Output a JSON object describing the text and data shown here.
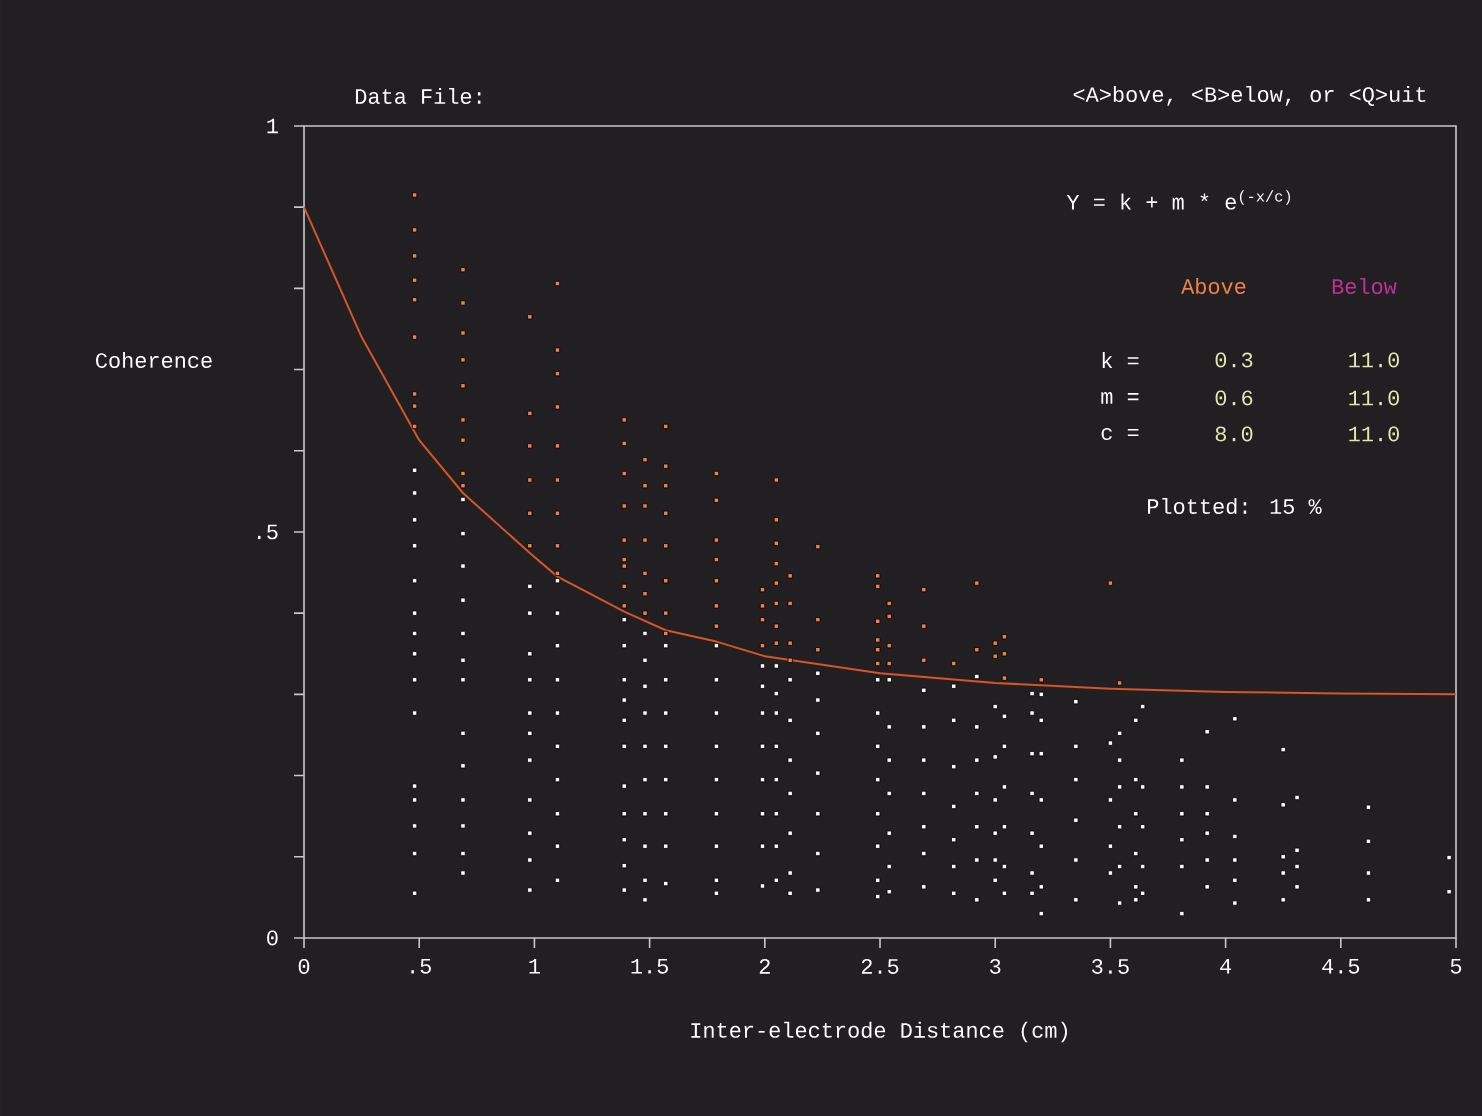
{
  "chart_data": {
    "type": "scatter",
    "xlabel": "Inter-electrode Distance (cm)",
    "ylabel": "Coherence",
    "xlim": [
      0,
      5
    ],
    "ylim": [
      0,
      1
    ],
    "xticks": [
      0,
      {
        "value": 0.5,
        "label": ".5"
      },
      1,
      1.5,
      2,
      2.5,
      3,
      3.5,
      4,
      4.5,
      5
    ],
    "yticks": [
      0,
      {
        "value": 0.1,
        "label": null
      },
      {
        "value": 0.2,
        "label": null
      },
      {
        "value": 0.3,
        "label": null
      },
      {
        "value": 0.4,
        "label": null
      },
      {
        "value": 0.5,
        "label": ".5"
      },
      {
        "value": 0.6,
        "label": null
      },
      {
        "value": 0.7,
        "label": null
      },
      {
        "value": 0.8,
        "label": null
      },
      {
        "value": 0.9,
        "label": null
      },
      1
    ],
    "annotations": [
      "Data File:",
      "<A>bove, <B>elow, or <Q>uit",
      "Y = k + m * e$^{(-x/c)}$",
      "Above",
      "Below",
      "k =",
      "0.3",
      "11.0",
      "m =",
      "0.6",
      "11.0",
      "c =",
      "8.0",
      "11.0",
      "Plotted: 15 %"
    ],
    "series": [
      {
        "marker": "square",
        "color": "#f0804a",
        "x": [
          0.48,
          0.48,
          0.48,
          0.48,
          0.48,
          0.48,
          0.48,
          0.48,
          0.48,
          0.69,
          0.69,
          0.69,
          0.69,
          0.69,
          0.69,
          0.69,
          0.69,
          0.69,
          0.98,
          0.98,
          0.98,
          0.98,
          0.98,
          0.98,
          1.1,
          1.1,
          1.1,
          1.1,
          1.1,
          1.1,
          1.1,
          1.1,
          1.1,
          1.39,
          1.39,
          1.39,
          1.39,
          1.39,
          1.39,
          1.39,
          1.39,
          1.39,
          1.48,
          1.48,
          1.48,
          1.48,
          1.48,
          1.48,
          1.48,
          1.57,
          1.57,
          1.57,
          1.57,
          1.57,
          1.57,
          1.57,
          1.57,
          1.79,
          1.79,
          1.79,
          1.79,
          1.79,
          1.79,
          1.79,
          1.99,
          1.99,
          1.99,
          1.99,
          2.05,
          2.05,
          2.05,
          2.05,
          2.05,
          2.05,
          2.05,
          2.05,
          2.11,
          2.11,
          2.11,
          2.11,
          2.23,
          2.23,
          2.23,
          2.49,
          2.49,
          2.49,
          2.49,
          2.49,
          2.49,
          2.54,
          2.54,
          2.54,
          2.54,
          2.69,
          2.69,
          2.69,
          2.82,
          2.92,
          2.92,
          3.0,
          3.0,
          3.04,
          3.04,
          3.04,
          3.2,
          3.5,
          3.54
        ],
        "values": [
          0.915,
          0.872,
          0.84,
          0.81,
          0.786,
          0.74,
          0.67,
          0.655,
          0.63,
          0.823,
          0.782,
          0.745,
          0.712,
          0.68,
          0.638,
          0.613,
          0.572,
          0.557,
          0.765,
          0.646,
          0.606,
          0.564,
          0.523,
          0.483,
          0.806,
          0.724,
          0.695,
          0.654,
          0.606,
          0.564,
          0.523,
          0.483,
          0.449,
          0.638,
          0.609,
          0.572,
          0.532,
          0.49,
          0.466,
          0.433,
          0.458,
          0.409,
          0.589,
          0.557,
          0.532,
          0.49,
          0.449,
          0.424,
          0.4,
          0.63,
          0.581,
          0.557,
          0.523,
          0.483,
          0.44,
          0.4,
          0.375,
          0.572,
          0.539,
          0.49,
          0.466,
          0.44,
          0.409,
          0.384,
          0.429,
          0.409,
          0.392,
          0.36,
          0.564,
          0.515,
          0.486,
          0.461,
          0.437,
          0.412,
          0.384,
          0.363,
          0.446,
          0.412,
          0.363,
          0.342,
          0.482,
          0.392,
          0.355,
          0.446,
          0.433,
          0.39,
          0.367,
          0.355,
          0.338,
          0.412,
          0.396,
          0.36,
          0.338,
          0.429,
          0.384,
          0.342,
          0.338,
          0.437,
          0.355,
          0.363,
          0.347,
          0.371,
          0.35,
          0.32,
          0.318,
          0.437,
          0.314
        ]
      },
      {
        "marker": "square",
        "color": "#ffffff",
        "x": [
          0.48,
          0.48,
          0.48,
          0.48,
          0.48,
          0.48,
          0.48,
          0.48,
          0.48,
          0.48,
          0.48,
          0.48,
          0.48,
          0.48,
          0.48,
          0.69,
          0.69,
          0.69,
          0.69,
          0.69,
          0.69,
          0.69,
          0.69,
          0.69,
          0.69,
          0.69,
          0.69,
          0.69,
          0.98,
          0.98,
          0.98,
          0.98,
          0.98,
          0.98,
          0.98,
          0.98,
          0.98,
          0.98,
          0.98,
          1.1,
          1.1,
          1.1,
          1.1,
          1.1,
          1.1,
          1.1,
          1.1,
          1.1,
          1.1,
          1.39,
          1.39,
          1.39,
          1.39,
          1.39,
          1.39,
          1.39,
          1.39,
          1.39,
          1.39,
          1.39,
          1.48,
          1.48,
          1.48,
          1.48,
          1.48,
          1.48,
          1.48,
          1.48,
          1.48,
          1.48,
          1.57,
          1.57,
          1.57,
          1.57,
          1.57,
          1.57,
          1.57,
          1.57,
          1.79,
          1.79,
          1.79,
          1.79,
          1.79,
          1.79,
          1.79,
          1.79,
          1.79,
          1.99,
          1.99,
          1.99,
          1.99,
          1.99,
          1.99,
          1.99,
          1.99,
          2.05,
          2.05,
          2.05,
          2.05,
          2.05,
          2.05,
          2.05,
          2.05,
          2.11,
          2.11,
          2.11,
          2.11,
          2.11,
          2.11,
          2.11,
          2.23,
          2.23,
          2.23,
          2.23,
          2.23,
          2.23,
          2.23,
          2.49,
          2.49,
          2.49,
          2.49,
          2.49,
          2.49,
          2.49,
          2.49,
          2.54,
          2.54,
          2.54,
          2.54,
          2.54,
          2.54,
          2.54,
          2.69,
          2.69,
          2.69,
          2.69,
          2.69,
          2.69,
          2.69,
          2.82,
          2.82,
          2.82,
          2.82,
          2.82,
          2.82,
          2.82,
          2.92,
          2.92,
          2.92,
          2.92,
          2.92,
          2.92,
          2.92,
          3.0,
          3.0,
          3.0,
          3.0,
          3.0,
          3.0,
          3.04,
          3.04,
          3.04,
          3.04,
          3.04,
          3.04,
          3.16,
          3.16,
          3.16,
          3.16,
          3.16,
          3.16,
          3.16,
          3.2,
          3.2,
          3.2,
          3.2,
          3.2,
          3.2,
          3.2,
          3.35,
          3.35,
          3.35,
          3.35,
          3.35,
          3.35,
          3.5,
          3.5,
          3.5,
          3.5,
          3.54,
          3.54,
          3.54,
          3.54,
          3.54,
          3.54,
          3.61,
          3.61,
          3.61,
          3.61,
          3.61,
          3.61,
          3.64,
          3.64,
          3.64,
          3.64,
          3.64,
          3.81,
          3.81,
          3.81,
          3.81,
          3.81,
          3.81,
          3.92,
          3.92,
          3.92,
          3.92,
          3.92,
          3.92,
          4.04,
          4.04,
          4.04,
          4.04,
          4.04,
          4.04,
          4.25,
          4.25,
          4.25,
          4.25,
          4.25,
          4.31,
          4.31,
          4.31,
          4.31,
          4.62,
          4.62,
          4.62,
          4.62,
          4.97,
          4.97
        ],
        "values": [
          0.576,
          0.548,
          0.515,
          0.483,
          0.44,
          0.4,
          0.375,
          0.35,
          0.318,
          0.277,
          0.187,
          0.17,
          0.138,
          0.104,
          0.055,
          0.54,
          0.498,
          0.458,
          0.416,
          0.375,
          0.342,
          0.318,
          0.252,
          0.212,
          0.17,
          0.138,
          0.104,
          0.08,
          0.433,
          0.4,
          0.35,
          0.318,
          0.277,
          0.252,
          0.219,
          0.17,
          0.129,
          0.096,
          0.059,
          0.44,
          0.4,
          0.36,
          0.318,
          0.277,
          0.236,
          0.195,
          0.153,
          0.113,
          0.071,
          0.392,
          0.36,
          0.318,
          0.293,
          0.268,
          0.236,
          0.187,
          0.153,
          0.121,
          0.089,
          0.059,
          0.375,
          0.342,
          0.31,
          0.277,
          0.236,
          0.195,
          0.153,
          0.113,
          0.071,
          0.047,
          0.36,
          0.318,
          0.277,
          0.236,
          0.195,
          0.153,
          0.113,
          0.067,
          0.36,
          0.318,
          0.277,
          0.236,
          0.195,
          0.153,
          0.113,
          0.071,
          0.055,
          0.335,
          0.31,
          0.277,
          0.236,
          0.195,
          0.153,
          0.113,
          0.064,
          0.335,
          0.301,
          0.277,
          0.236,
          0.195,
          0.153,
          0.113,
          0.071,
          0.318,
          0.268,
          0.219,
          0.178,
          0.129,
          0.08,
          0.055,
          0.326,
          0.293,
          0.252,
          0.203,
          0.153,
          0.104,
          0.059,
          0.318,
          0.277,
          0.236,
          0.195,
          0.153,
          0.113,
          0.071,
          0.051,
          0.318,
          0.26,
          0.219,
          0.178,
          0.129,
          0.088,
          0.057,
          0.305,
          0.26,
          0.219,
          0.178,
          0.137,
          0.104,
          0.063,
          0.31,
          0.268,
          0.211,
          0.162,
          0.121,
          0.088,
          0.055,
          0.322,
          0.26,
          0.219,
          0.178,
          0.137,
          0.096,
          0.047,
          0.285,
          0.223,
          0.17,
          0.129,
          0.096,
          0.071,
          0.273,
          0.236,
          0.186,
          0.137,
          0.088,
          0.055,
          0.301,
          0.277,
          0.227,
          0.178,
          0.129,
          0.08,
          0.055,
          0.3,
          0.268,
          0.227,
          0.17,
          0.113,
          0.063,
          0.03,
          0.291,
          0.236,
          0.195,
          0.145,
          0.096,
          0.047,
          0.24,
          0.17,
          0.113,
          0.08,
          0.252,
          0.219,
          0.186,
          0.137,
          0.088,
          0.043,
          0.268,
          0.195,
          0.153,
          0.104,
          0.063,
          0.047,
          0.285,
          0.186,
          0.137,
          0.088,
          0.055,
          0.219,
          0.186,
          0.153,
          0.121,
          0.088,
          0.03,
          0.254,
          0.186,
          0.153,
          0.129,
          0.096,
          0.063,
          0.27,
          0.17,
          0.125,
          0.096,
          0.071,
          0.043,
          0.232,
          0.164,
          0.1,
          0.08,
          0.047,
          0.173,
          0.108,
          0.088,
          0.063,
          0.161,
          0.119,
          0.08,
          0.047,
          0.099,
          0.057
        ]
      },
      {
        "type": "line",
        "marker": "none",
        "color": "#d4552a",
        "x": [
          0,
          0.25,
          0.5,
          0.69,
          0.98,
          1.1,
          1.39,
          1.57,
          1.79,
          2.0,
          2.5,
          3.0,
          3.5,
          4.0,
          4.5,
          5.0
        ],
        "values": [
          0.9,
          0.74,
          0.613,
          0.548,
          0.474,
          0.445,
          0.402,
          0.379,
          0.365,
          0.347,
          0.326,
          0.314,
          0.307,
          0.303,
          0.301,
          0.3
        ]
      }
    ]
  }
}
